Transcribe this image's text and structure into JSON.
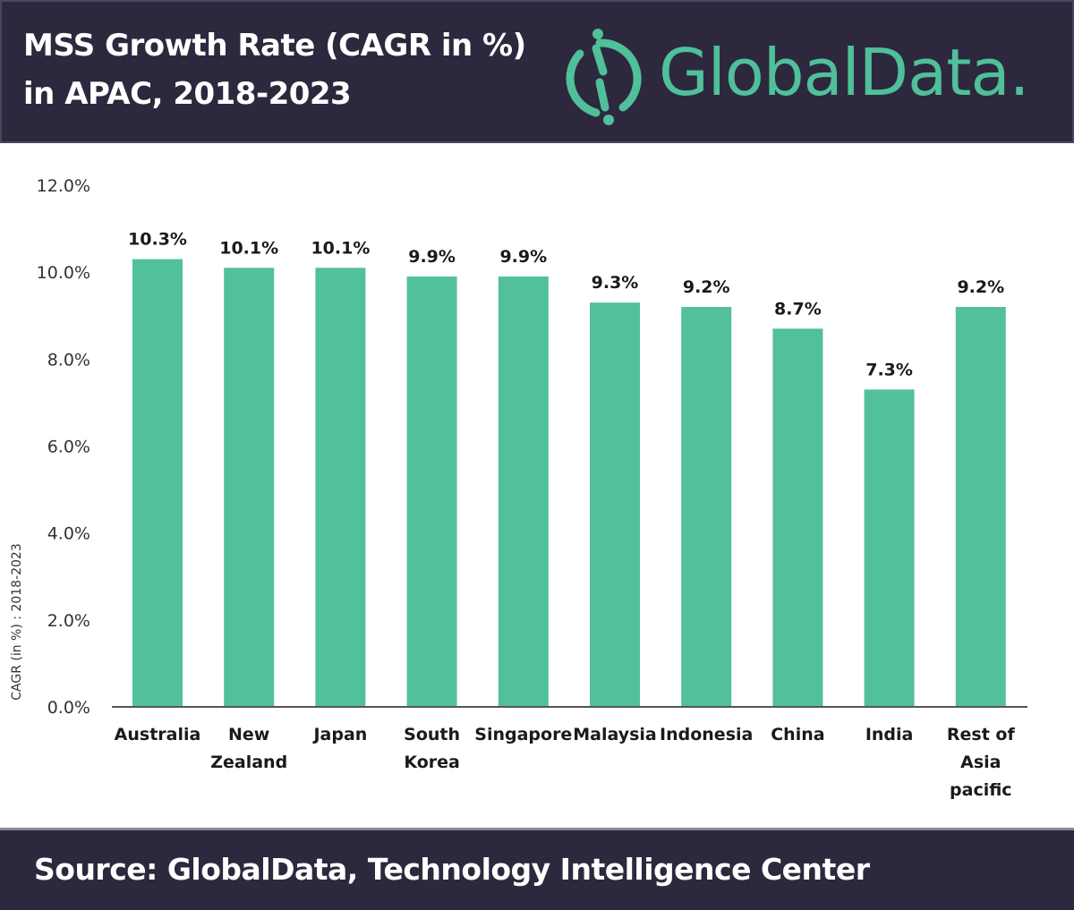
{
  "header": {
    "title_line1": "MSS Growth Rate (CAGR in %)",
    "title_line2": "in APAC, 2018-2023",
    "logo_text": "GlobalData.",
    "logo_icon": "globaldata-logo-icon"
  },
  "footer": {
    "source": "Source:  GlobalData, Technology Intelligence Center"
  },
  "colors": {
    "header_bg": "#2d283e",
    "bar": "#52c09b",
    "brand_green": "#4fc09a"
  },
  "chart_data": {
    "type": "bar",
    "title": "MSS Growth Rate (CAGR in %) in APAC, 2018-2023",
    "xlabel": "",
    "ylabel": "CAGR (in %) : 2018-2023",
    "ylim": [
      0,
      12
    ],
    "yticks": [
      0,
      2,
      4,
      6,
      8,
      10,
      12
    ],
    "ytick_labels": [
      "0.0%",
      "2.0%",
      "4.0%",
      "6.0%",
      "8.0%",
      "10.0%",
      "12.0%"
    ],
    "grid": false,
    "legend": "none",
    "categories": [
      [
        "Australia"
      ],
      [
        "New",
        "Zealand"
      ],
      [
        "Japan"
      ],
      [
        "South",
        "Korea"
      ],
      [
        "Singapore"
      ],
      [
        "Malaysia"
      ],
      [
        "Indonesia"
      ],
      [
        "China"
      ],
      [
        "India"
      ],
      [
        "Rest of",
        "Asia",
        "pacific"
      ]
    ],
    "values": [
      10.3,
      10.1,
      10.1,
      9.9,
      9.9,
      9.3,
      9.2,
      8.7,
      7.3,
      9.2
    ],
    "data_labels": [
      "10.3%",
      "10.1%",
      "10.1%",
      "9.9%",
      "9.9%",
      "9.3%",
      "9.2%",
      "8.7%",
      "7.3%",
      "9.2%"
    ]
  }
}
